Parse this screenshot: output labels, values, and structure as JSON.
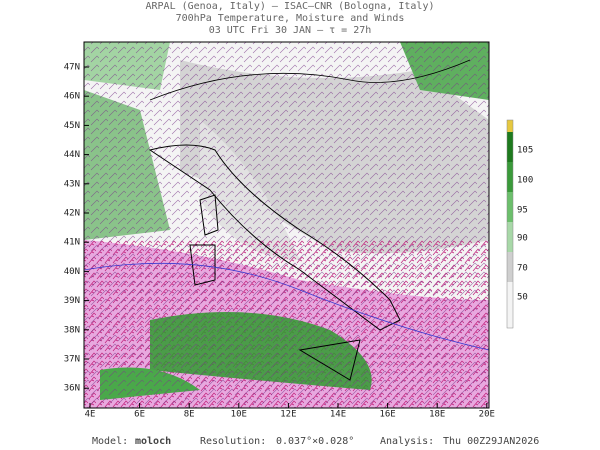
{
  "header": {
    "lines": [
      "ARPAL (Genoa, Italy)  –  ISAC–CNR (Bologna, Italy)",
      "700hPa Temperature, Moisture and Winds",
      "03 UTC Fri 30 JAN  –  τ = 27h"
    ]
  },
  "map": {
    "lat_labels": [
      "47N",
      "46N",
      "45N",
      "44N",
      "43N",
      "42N",
      "41N",
      "40N",
      "39N",
      "38N",
      "37N",
      "36N"
    ],
    "lon_labels": [
      "4E",
      "6E",
      "8E",
      "10E",
      "12E",
      "14E",
      "16E",
      "18E",
      "20E"
    ]
  },
  "colorbar": {
    "labels": [
      "105",
      "100",
      "95",
      "90",
      "70",
      "50"
    ]
  },
  "footer": {
    "model_label": "Model:",
    "model": "moloch",
    "resolution_label": "Resolution:",
    "resolution": "0.037°×0.028°",
    "analysis_label": "Analysis:",
    "analysis": "Thu 00Z29JAN2026"
  }
}
